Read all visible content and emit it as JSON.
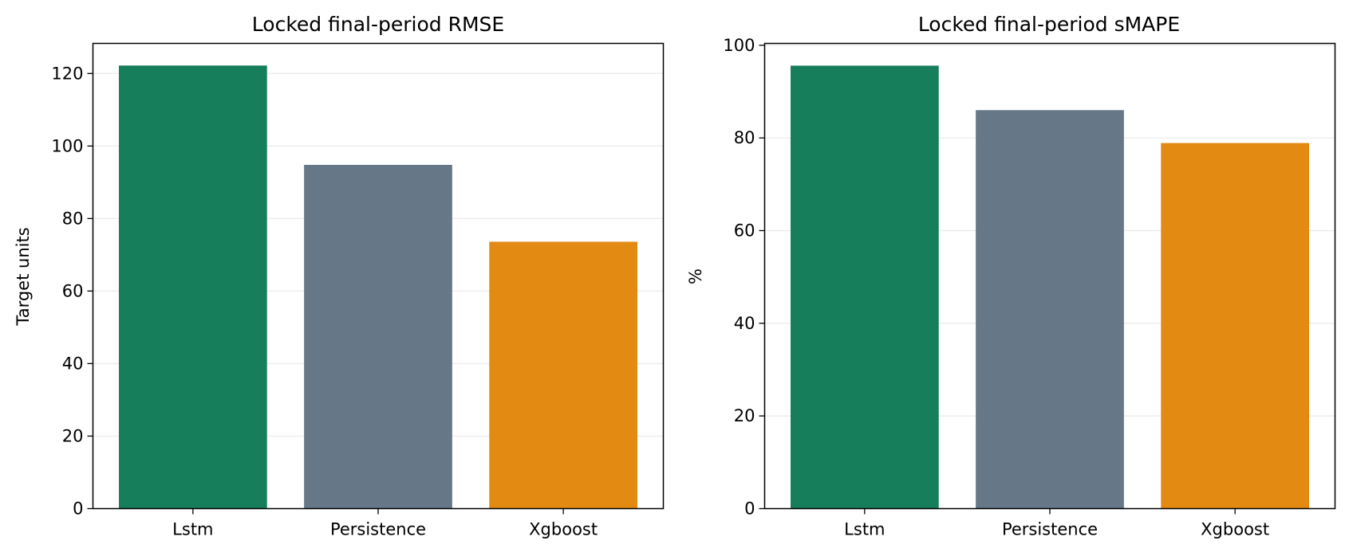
{
  "chart_data": [
    {
      "type": "bar",
      "title": "Locked final-period RMSE",
      "xlabel": "",
      "ylabel": "Target units",
      "categories": [
        "Lstm",
        "Persistence",
        "Xgboost"
      ],
      "values": [
        122.2,
        94.8,
        73.6
      ],
      "colors": [
        "#177e5b",
        "#667788",
        "#e38a13"
      ],
      "ylim": [
        0,
        128.3
      ],
      "yticks": [
        0,
        20,
        40,
        60,
        80,
        100,
        120
      ],
      "grid": "y"
    },
    {
      "type": "bar",
      "title": "Locked final-period sMAPE",
      "xlabel": "",
      "ylabel": "%",
      "categories": [
        "Lstm",
        "Persistence",
        "Xgboost"
      ],
      "values": [
        95.6,
        86.0,
        78.9
      ],
      "colors": [
        "#177e5b",
        "#667788",
        "#e38a13"
      ],
      "ylim": [
        0,
        100.4
      ],
      "yticks": [
        0,
        20,
        40,
        60,
        80,
        100
      ],
      "grid": "y"
    }
  ]
}
